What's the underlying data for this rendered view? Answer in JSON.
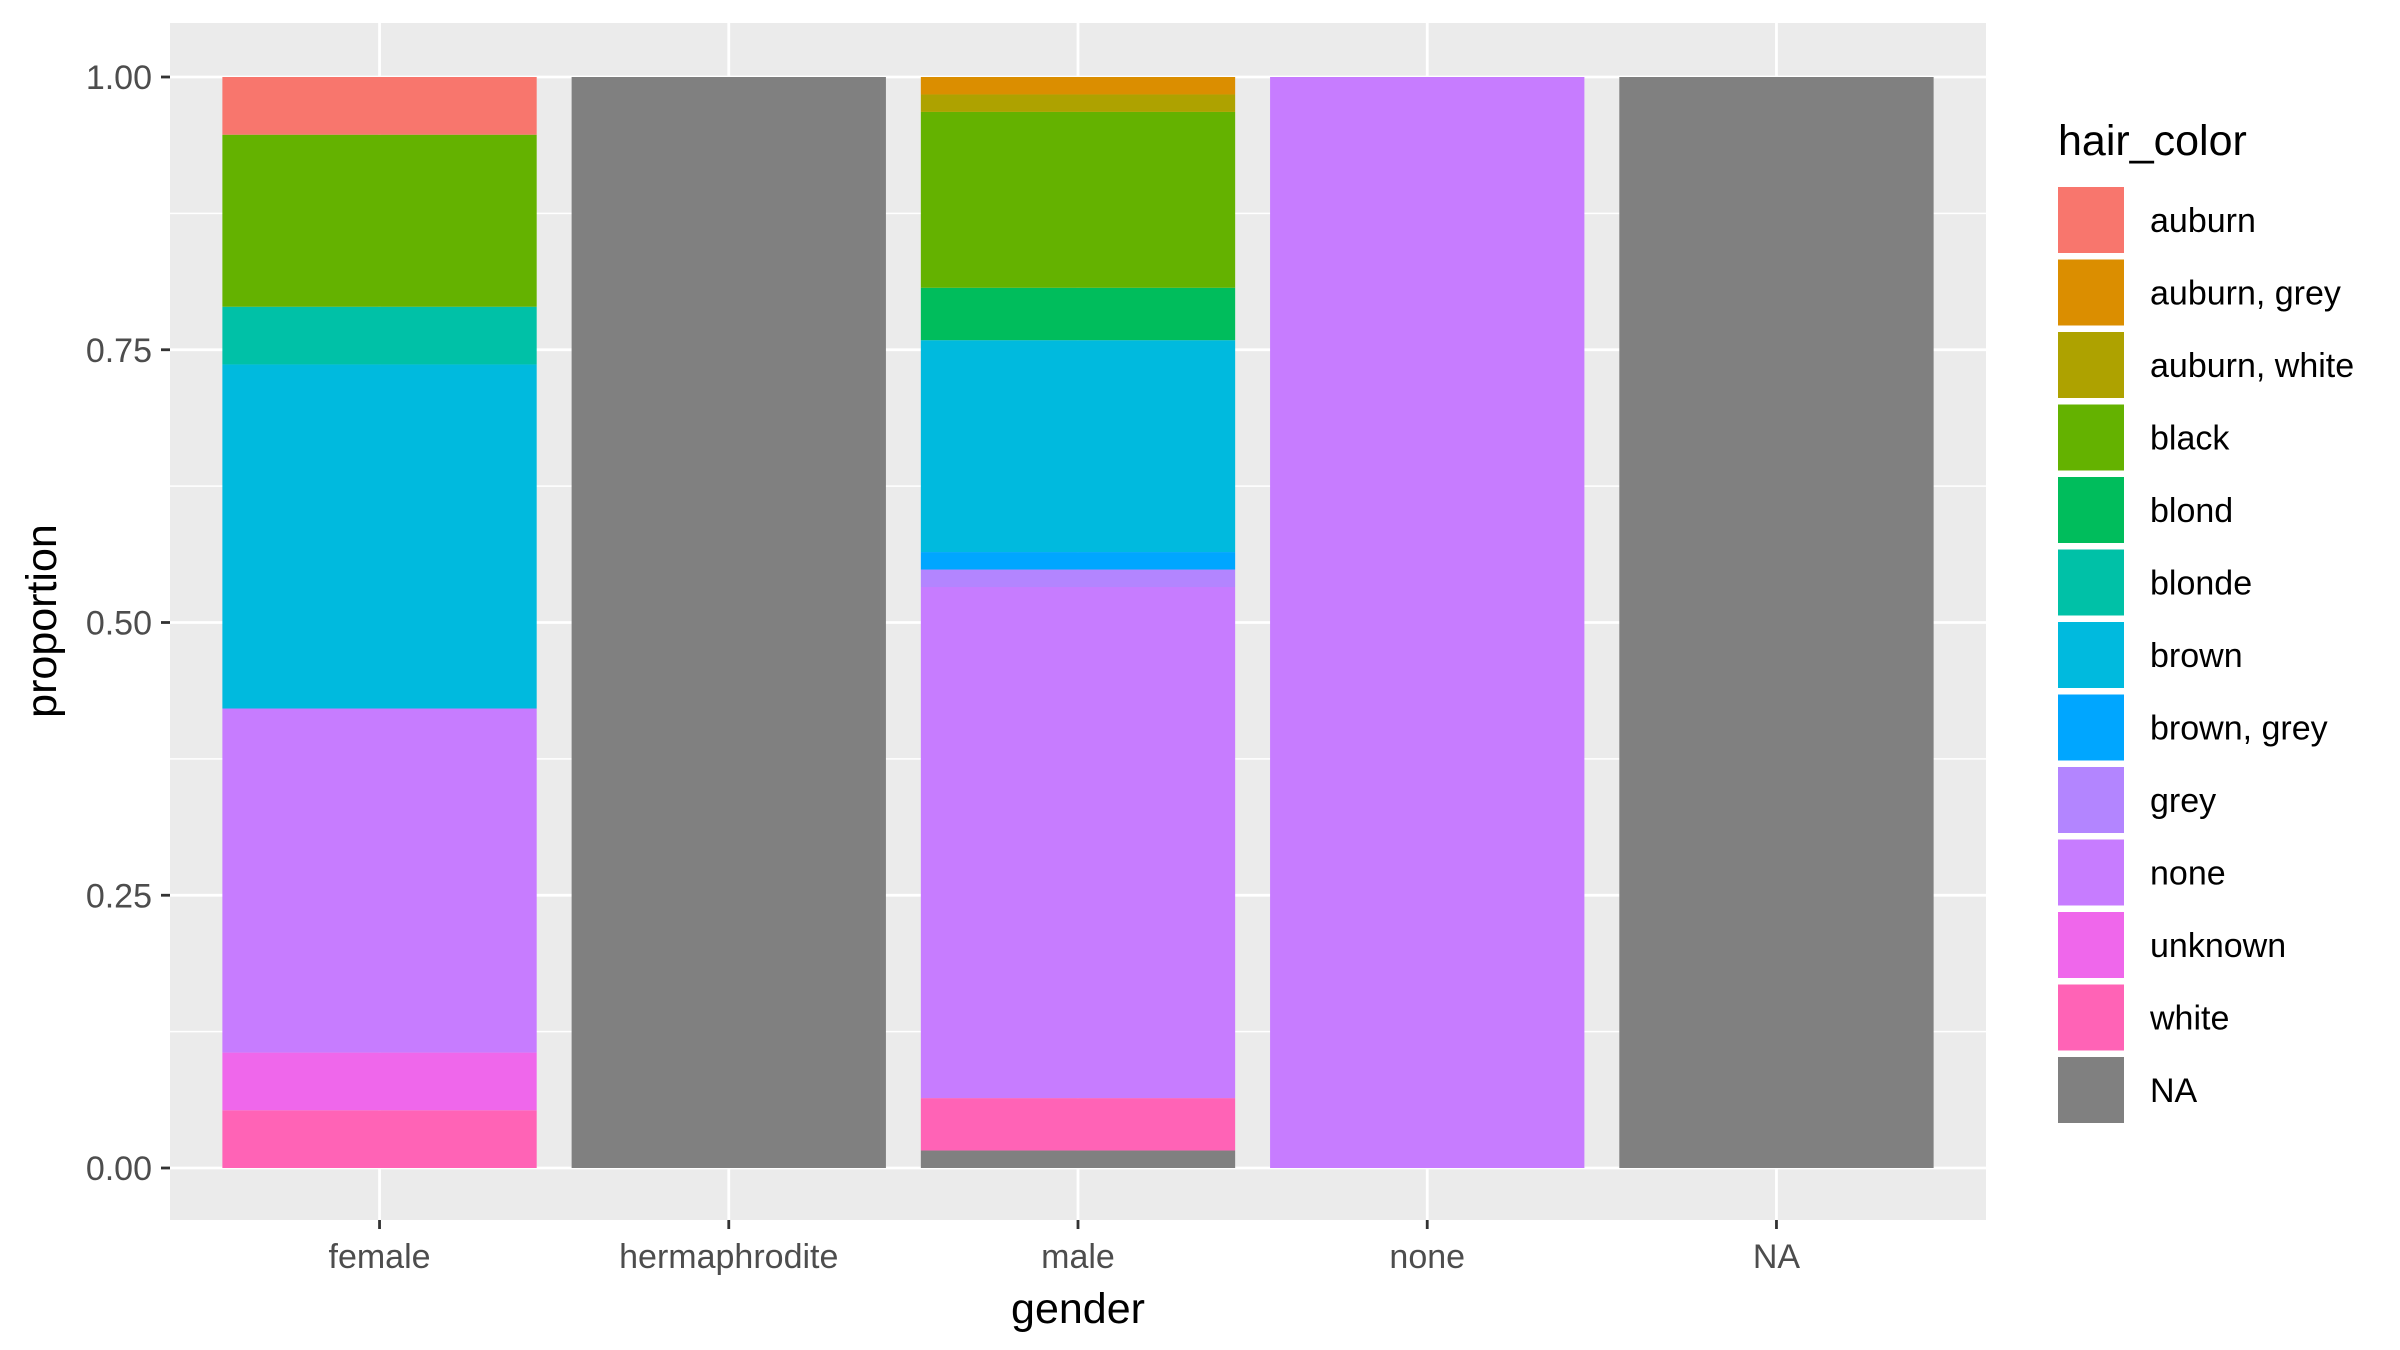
{
  "chart_data": {
    "type": "bar",
    "stacked": "fill",
    "xlabel": "gender",
    "ylabel": "proportion",
    "categories": [
      "female",
      "hermaphrodite",
      "male",
      "none",
      "NA"
    ],
    "ylim": [
      0,
      1
    ],
    "y_ticks": [
      "0.00",
      "0.25",
      "0.50",
      "0.75",
      "1.00"
    ],
    "grid": true,
    "legend": {
      "title": "hair_color",
      "position": "right"
    },
    "series": [
      {
        "name": "auburn",
        "color": "#F8766D",
        "values": [
          0.053,
          0,
          0,
          0,
          0
        ]
      },
      {
        "name": "auburn, grey",
        "color": "#DB8E00",
        "values": [
          0,
          0,
          0.016,
          0,
          0
        ]
      },
      {
        "name": "auburn, white",
        "color": "#AEA200",
        "values": [
          0,
          0,
          0.016,
          0,
          0
        ]
      },
      {
        "name": "black",
        "color": "#64B200",
        "values": [
          0.158,
          0,
          0.161,
          0,
          0
        ]
      },
      {
        "name": "blond",
        "color": "#00BD5C",
        "values": [
          0,
          0,
          0.048,
          0,
          0
        ]
      },
      {
        "name": "blonde",
        "color": "#00C1A7",
        "values": [
          0.053,
          0,
          0,
          0,
          0
        ]
      },
      {
        "name": "brown",
        "color": "#00BADE",
        "values": [
          0.316,
          0,
          0.194,
          0,
          0
        ]
      },
      {
        "name": "brown, grey",
        "color": "#00A6FF",
        "values": [
          0,
          0,
          0.016,
          0,
          0
        ]
      },
      {
        "name": "grey",
        "color": "#B385FF",
        "values": [
          0,
          0,
          0.016,
          0,
          0
        ]
      },
      {
        "name": "none",
        "color": "#C77CFF",
        "values": [
          0.316,
          0,
          0.468,
          1,
          0
        ]
      },
      {
        "name": "unknown",
        "color": "#EF67EB",
        "values": [
          0.053,
          0,
          0,
          0,
          0
        ]
      },
      {
        "name": "white",
        "color": "#FF63B6",
        "values": [
          0.053,
          0,
          0.048,
          0,
          0
        ]
      },
      {
        "name": "NA",
        "color": "#808080",
        "values": [
          0,
          1,
          0.016,
          0,
          1
        ]
      }
    ]
  },
  "colors": {
    "panel_background": "#EBEBEB",
    "grid_major": "#FFFFFF",
    "tick_text": "#4D4D4D"
  }
}
